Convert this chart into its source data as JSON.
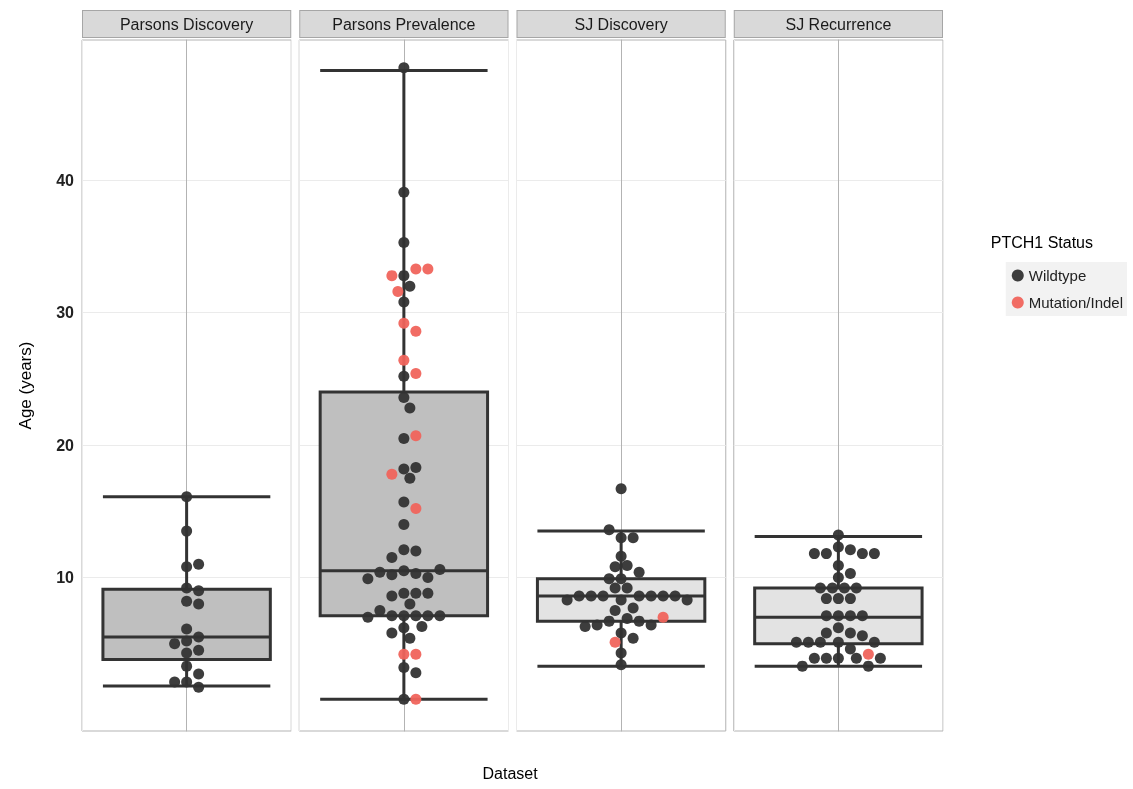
{
  "chart_data": {
    "type": "box",
    "xlabel": "Dataset",
    "ylabel": "Age (years)",
    "legend_title": "PTCH1 Status",
    "legend": "right",
    "grid": true,
    "marker": "circle",
    "tick_labels": "y",
    "categories": [
      "Parsons Discovery",
      "Parsons Prevalence",
      "SJ Discovery",
      "SJ Recurrence"
    ],
    "colors": [
      "#bfbfbf",
      "#bfbfbf",
      "#e3e3e3",
      "#e3e3e3"
    ],
    "boxes": [
      {
        "low": 1.8,
        "q1": 3.8,
        "median": 5.5,
        "q3": 9.1,
        "high": 16.1
      },
      {
        "low": 0.8,
        "q1": 7.1,
        "median": 10.5,
        "q3": 24.0,
        "high": 48.3
      },
      {
        "low": 3.3,
        "q1": 6.7,
        "median": 8.6,
        "q3": 9.9,
        "high": 13.5
      },
      {
        "low": 3.3,
        "q1": 5.0,
        "median": 7.0,
        "q3": 9.2,
        "high": 13.1
      }
    ],
    "ylim": [
      -1.6,
      50.6
    ],
    "yticks": [
      10,
      20,
      30,
      40
    ],
    "series": [
      {
        "name": "Wildtype",
        "type": "scatter",
        "color": "#333333",
        "x": [
          "Parsons Discovery",
          "Parsons Discovery",
          "Parsons Discovery",
          "Parsons Discovery",
          "Parsons Discovery",
          "Parsons Discovery",
          "Parsons Discovery",
          "Parsons Discovery",
          "Parsons Discovery",
          "Parsons Discovery",
          "Parsons Discovery",
          "Parsons Discovery",
          "Parsons Discovery",
          "Parsons Discovery",
          "Parsons Discovery",
          "Parsons Discovery",
          "Parsons Discovery",
          "Parsons Discovery",
          "Parsons Discovery",
          "Parsons Prevalence",
          "Parsons Prevalence",
          "Parsons Prevalence",
          "Parsons Prevalence",
          "Parsons Prevalence",
          "Parsons Prevalence",
          "Parsons Prevalence",
          "Parsons Prevalence",
          "Parsons Prevalence",
          "Parsons Prevalence",
          "Parsons Prevalence",
          "Parsons Prevalence",
          "Parsons Prevalence",
          "Parsons Prevalence",
          "Parsons Prevalence",
          "Parsons Prevalence",
          "Parsons Prevalence",
          "Parsons Prevalence",
          "Parsons Prevalence",
          "Parsons Prevalence",
          "Parsons Prevalence",
          "Parsons Prevalence",
          "Parsons Prevalence",
          "Parsons Prevalence",
          "Parsons Prevalence",
          "Parsons Prevalence",
          "Parsons Prevalence",
          "Parsons Prevalence",
          "Parsons Prevalence",
          "Parsons Prevalence",
          "Parsons Prevalence",
          "Parsons Prevalence",
          "Parsons Prevalence",
          "Parsons Prevalence",
          "Parsons Prevalence",
          "Parsons Prevalence",
          "Parsons Prevalence",
          "Parsons Prevalence",
          "Parsons Prevalence",
          "Parsons Prevalence",
          "Parsons Prevalence",
          "Parsons Prevalence",
          "Parsons Prevalence",
          "Parsons Prevalence",
          "SJ Discovery",
          "SJ Discovery",
          "SJ Discovery",
          "SJ Discovery",
          "SJ Discovery",
          "SJ Discovery",
          "SJ Discovery",
          "SJ Discovery",
          "SJ Discovery",
          "SJ Discovery",
          "SJ Discovery",
          "SJ Discovery",
          "SJ Discovery",
          "SJ Discovery",
          "SJ Discovery",
          "SJ Discovery",
          "SJ Discovery",
          "SJ Discovery",
          "SJ Discovery",
          "SJ Discovery",
          "SJ Discovery",
          "SJ Discovery",
          "SJ Discovery",
          "SJ Discovery",
          "SJ Discovery",
          "SJ Discovery",
          "SJ Discovery",
          "SJ Discovery",
          "SJ Discovery",
          "SJ Discovery",
          "SJ Discovery",
          "SJ Discovery",
          "SJ Discovery",
          "SJ Discovery",
          "SJ Recurrence",
          "SJ Recurrence",
          "SJ Recurrence",
          "SJ Recurrence",
          "SJ Recurrence",
          "SJ Recurrence",
          "SJ Recurrence",
          "SJ Recurrence",
          "SJ Recurrence",
          "SJ Recurrence",
          "SJ Recurrence",
          "SJ Recurrence",
          "SJ Recurrence",
          "SJ Recurrence",
          "SJ Recurrence",
          "SJ Recurrence",
          "SJ Recurrence",
          "SJ Recurrence",
          "SJ Recurrence",
          "SJ Recurrence",
          "SJ Recurrence",
          "SJ Recurrence",
          "SJ Recurrence",
          "SJ Recurrence",
          "SJ Recurrence",
          "SJ Recurrence",
          "SJ Recurrence",
          "SJ Recurrence",
          "SJ Recurrence",
          "SJ Recurrence",
          "SJ Recurrence",
          "SJ Recurrence",
          "SJ Recurrence",
          "SJ Recurrence",
          "SJ Recurrence",
          "SJ Recurrence",
          "SJ Recurrence",
          "SJ Recurrence"
        ],
        "values": [
          16.1,
          13.5,
          10.8,
          11.0,
          9.2,
          9.0,
          8.2,
          8.0,
          6.1,
          5.2,
          5.5,
          4.3,
          5.0,
          4.5,
          3.3,
          2.7,
          2.1,
          1.7,
          2.1,
          48.5,
          39.1,
          35.3,
          32.8,
          32.0,
          30.8,
          25.2,
          23.6,
          22.8,
          20.5,
          18.2,
          18.3,
          17.5,
          15.7,
          14.0,
          12.1,
          12.0,
          11.5,
          10.5,
          10.3,
          10.2,
          10.0,
          10.4,
          10.6,
          9.9,
          8.8,
          8.8,
          8.6,
          8.0,
          8.8,
          7.1,
          7.1,
          7.1,
          7.1,
          7.5,
          7.1,
          7.0,
          6.2,
          6.3,
          5.8,
          5.4,
          3.2,
          2.8,
          0.8,
          16.7,
          13.0,
          13.0,
          13.6,
          11.6,
          10.9,
          10.8,
          10.4,
          9.9,
          9.9,
          9.2,
          9.2,
          8.6,
          8.6,
          8.6,
          8.6,
          8.6,
          8.6,
          8.6,
          8.3,
          8.3,
          8.3,
          7.7,
          7.5,
          6.9,
          6.7,
          6.7,
          6.4,
          6.4,
          6.3,
          5.8,
          5.4,
          4.3,
          3.4,
          13.2,
          12.3,
          12.1,
          11.8,
          11.8,
          11.8,
          11.8,
          10.9,
          10.0,
          10.3,
          9.2,
          9.2,
          9.2,
          9.2,
          8.4,
          8.4,
          8.4,
          7.1,
          7.1,
          7.1,
          7.1,
          6.2,
          5.8,
          5.8,
          5.6,
          5.1,
          5.1,
          5.1,
          5.1,
          5.1,
          4.6,
          3.9,
          3.9,
          3.9,
          3.9,
          3.3,
          3.3,
          3.9
        ]
      },
      {
        "name": "Mutation/Indel",
        "type": "scatter",
        "color": "#f0645c",
        "x": [
          "Parsons Prevalence",
          "Parsons Prevalence",
          "Parsons Prevalence",
          "Parsons Prevalence",
          "Parsons Prevalence",
          "Parsons Prevalence",
          "Parsons Prevalence",
          "Parsons Prevalence",
          "Parsons Prevalence",
          "Parsons Prevalence",
          "Parsons Prevalence",
          "Parsons Prevalence",
          "Parsons Prevalence",
          "Parsons Prevalence",
          "SJ Discovery",
          "SJ Discovery",
          "SJ Recurrence"
        ],
        "values": [
          33.3,
          32.8,
          33.3,
          31.6,
          29.2,
          28.6,
          26.4,
          25.4,
          20.7,
          17.8,
          15.2,
          4.2,
          4.2,
          0.8,
          7.0,
          5.1,
          4.2
        ]
      }
    ]
  }
}
